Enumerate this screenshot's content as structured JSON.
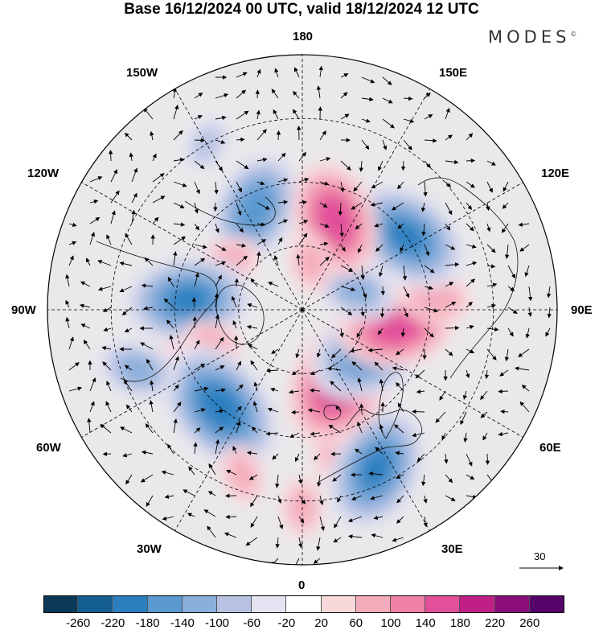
{
  "title": "Base 16/12/2024 00 UTC, valid 18/12/2024 12 UTC",
  "brand": "MODES",
  "brand_mark": "©",
  "longitude_labels": {
    "top": "180",
    "bottom": "0",
    "left": "90W",
    "right": "90E",
    "upper_left_1": "150W",
    "upper_left_2": "120W",
    "upper_right_1": "150E",
    "upper_right_2": "120E",
    "lower_left_1": "60W",
    "lower_left_2": "30W",
    "lower_right_1": "60E",
    "lower_right_2": "30E"
  },
  "vector_scale_label": "30",
  "colorbar": {
    "ticks": [
      "-260",
      "-220",
      "-180",
      "-140",
      "-100",
      "-60",
      "-20",
      "20",
      "60",
      "100",
      "140",
      "180",
      "220",
      "260"
    ],
    "colors": [
      "#0b3a58",
      "#145f92",
      "#2c7fbf",
      "#5a9ad0",
      "#8aafdb",
      "#b8c3e3",
      "#e4e3f1",
      "#ffffff",
      "#f9d8dc",
      "#f4acbc",
      "#ef81a6",
      "#e2509a",
      "#c01f86",
      "#8b0d77",
      "#55046a"
    ]
  },
  "colors": {
    "land_background": "#ececec",
    "ocean_background": "#ffffff",
    "coast": "#111111",
    "grid": "#000000"
  },
  "anomalies": [
    {
      "lon": -155,
      "colat": 35,
      "value": -160
    },
    {
      "lon": -120,
      "colat": 28,
      "value": 80
    },
    {
      "lon": -95,
      "colat": 36,
      "value": -180
    },
    {
      "lon": -70,
      "colat": 30,
      "value": 60
    },
    {
      "lon": -55,
      "colat": 40,
      "value": 140
    },
    {
      "lon": -40,
      "colat": 40,
      "value": -200
    },
    {
      "lon": -70,
      "colat": 55,
      "value": -100
    },
    {
      "lon": -20,
      "colat": 55,
      "value": 60
    },
    {
      "lon": 15,
      "colat": 45,
      "value": 80
    },
    {
      "lon": 25,
      "colat": 55,
      "value": -180
    },
    {
      "lon": 30,
      "colat": 25,
      "value": 200
    },
    {
      "lon": 60,
      "colat": 25,
      "value": -180
    },
    {
      "lon": 80,
      "colat": 30,
      "value": 160
    },
    {
      "lon": 95,
      "colat": 42,
      "value": 80
    },
    {
      "lon": 110,
      "colat": 18,
      "value": -100
    },
    {
      "lon": 125,
      "colat": 40,
      "value": -180
    },
    {
      "lon": 160,
      "colat": 30,
      "value": 160
    },
    {
      "lon": 170,
      "colat": 15,
      "value": 60
    },
    {
      "lon": 0,
      "colat": 62,
      "value": 60
    },
    {
      "lon": -150,
      "colat": 60,
      "value": -60
    }
  ]
}
